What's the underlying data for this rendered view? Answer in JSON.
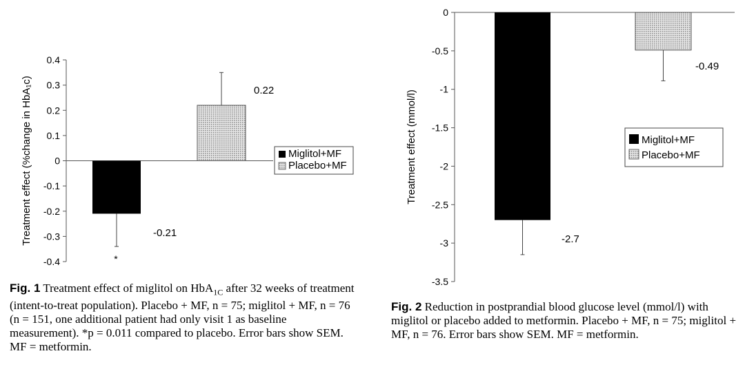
{
  "chart_data": [
    {
      "type": "bar",
      "ylabel": "Treatment effect (%change in HbA₁c)",
      "ylim": [
        -0.4,
        0.4
      ],
      "yticks": [
        "0.4",
        "0.3",
        "0.2",
        "0.1",
        "0",
        "-0.1",
        "-0.2",
        "-0.3",
        "-0.4"
      ],
      "series": [
        {
          "name": "Miglitol+MF",
          "values": [
            -0.21
          ],
          "error": [
            0.13
          ],
          "value_label": "-0.21",
          "color": "#000000"
        },
        {
          "name": "Placebo+MF",
          "values": [
            0.22
          ],
          "error": [
            0.13
          ],
          "value_label": "0.22",
          "color": "#c8c8c8"
        }
      ],
      "annotation": "*",
      "legend": "right",
      "grid": false
    },
    {
      "type": "bar",
      "ylabel": "Treatment effect (mmol/l)",
      "ylim": [
        -3.5,
        0
      ],
      "yticks": [
        "0",
        "-0.5",
        "-1",
        "-1.5",
        "-2",
        "-2.5",
        "-3",
        "-3.5"
      ],
      "series": [
        {
          "name": "Miglitol+MF",
          "values": [
            -2.7
          ],
          "error": [
            0.45
          ],
          "value_label": "-2.7",
          "color": "#000000"
        },
        {
          "name": "Placebo+MF",
          "values": [
            -0.49
          ],
          "error": [
            0.4
          ],
          "value_label": "-0.49",
          "color": "#c8c8c8"
        }
      ],
      "legend": "right",
      "grid": false
    }
  ],
  "captions": {
    "fig1": {
      "num": "Fig. 1",
      "text_a": " Treatment effect of miglitol on HbA",
      "sub": "1C",
      "text_b": " after 32 weeks of treatment (intent-to-treat population). Placebo + MF, n = 75; miglitol + MF, n = 76 (n = 151, one additional patient had only visit 1 as baseline measurement). *p = 0.011 compared to placebo. Error bars show SEM. MF = metformin."
    },
    "fig2": {
      "num": "Fig. 2",
      "text": " Reduction in postprandial blood glucose level (mmol/l) with miglitol or placebo added to metformin. Placebo + MF, n = 75; miglitol + MF, n = 76. Error bars show SEM. MF = metformin."
    }
  }
}
